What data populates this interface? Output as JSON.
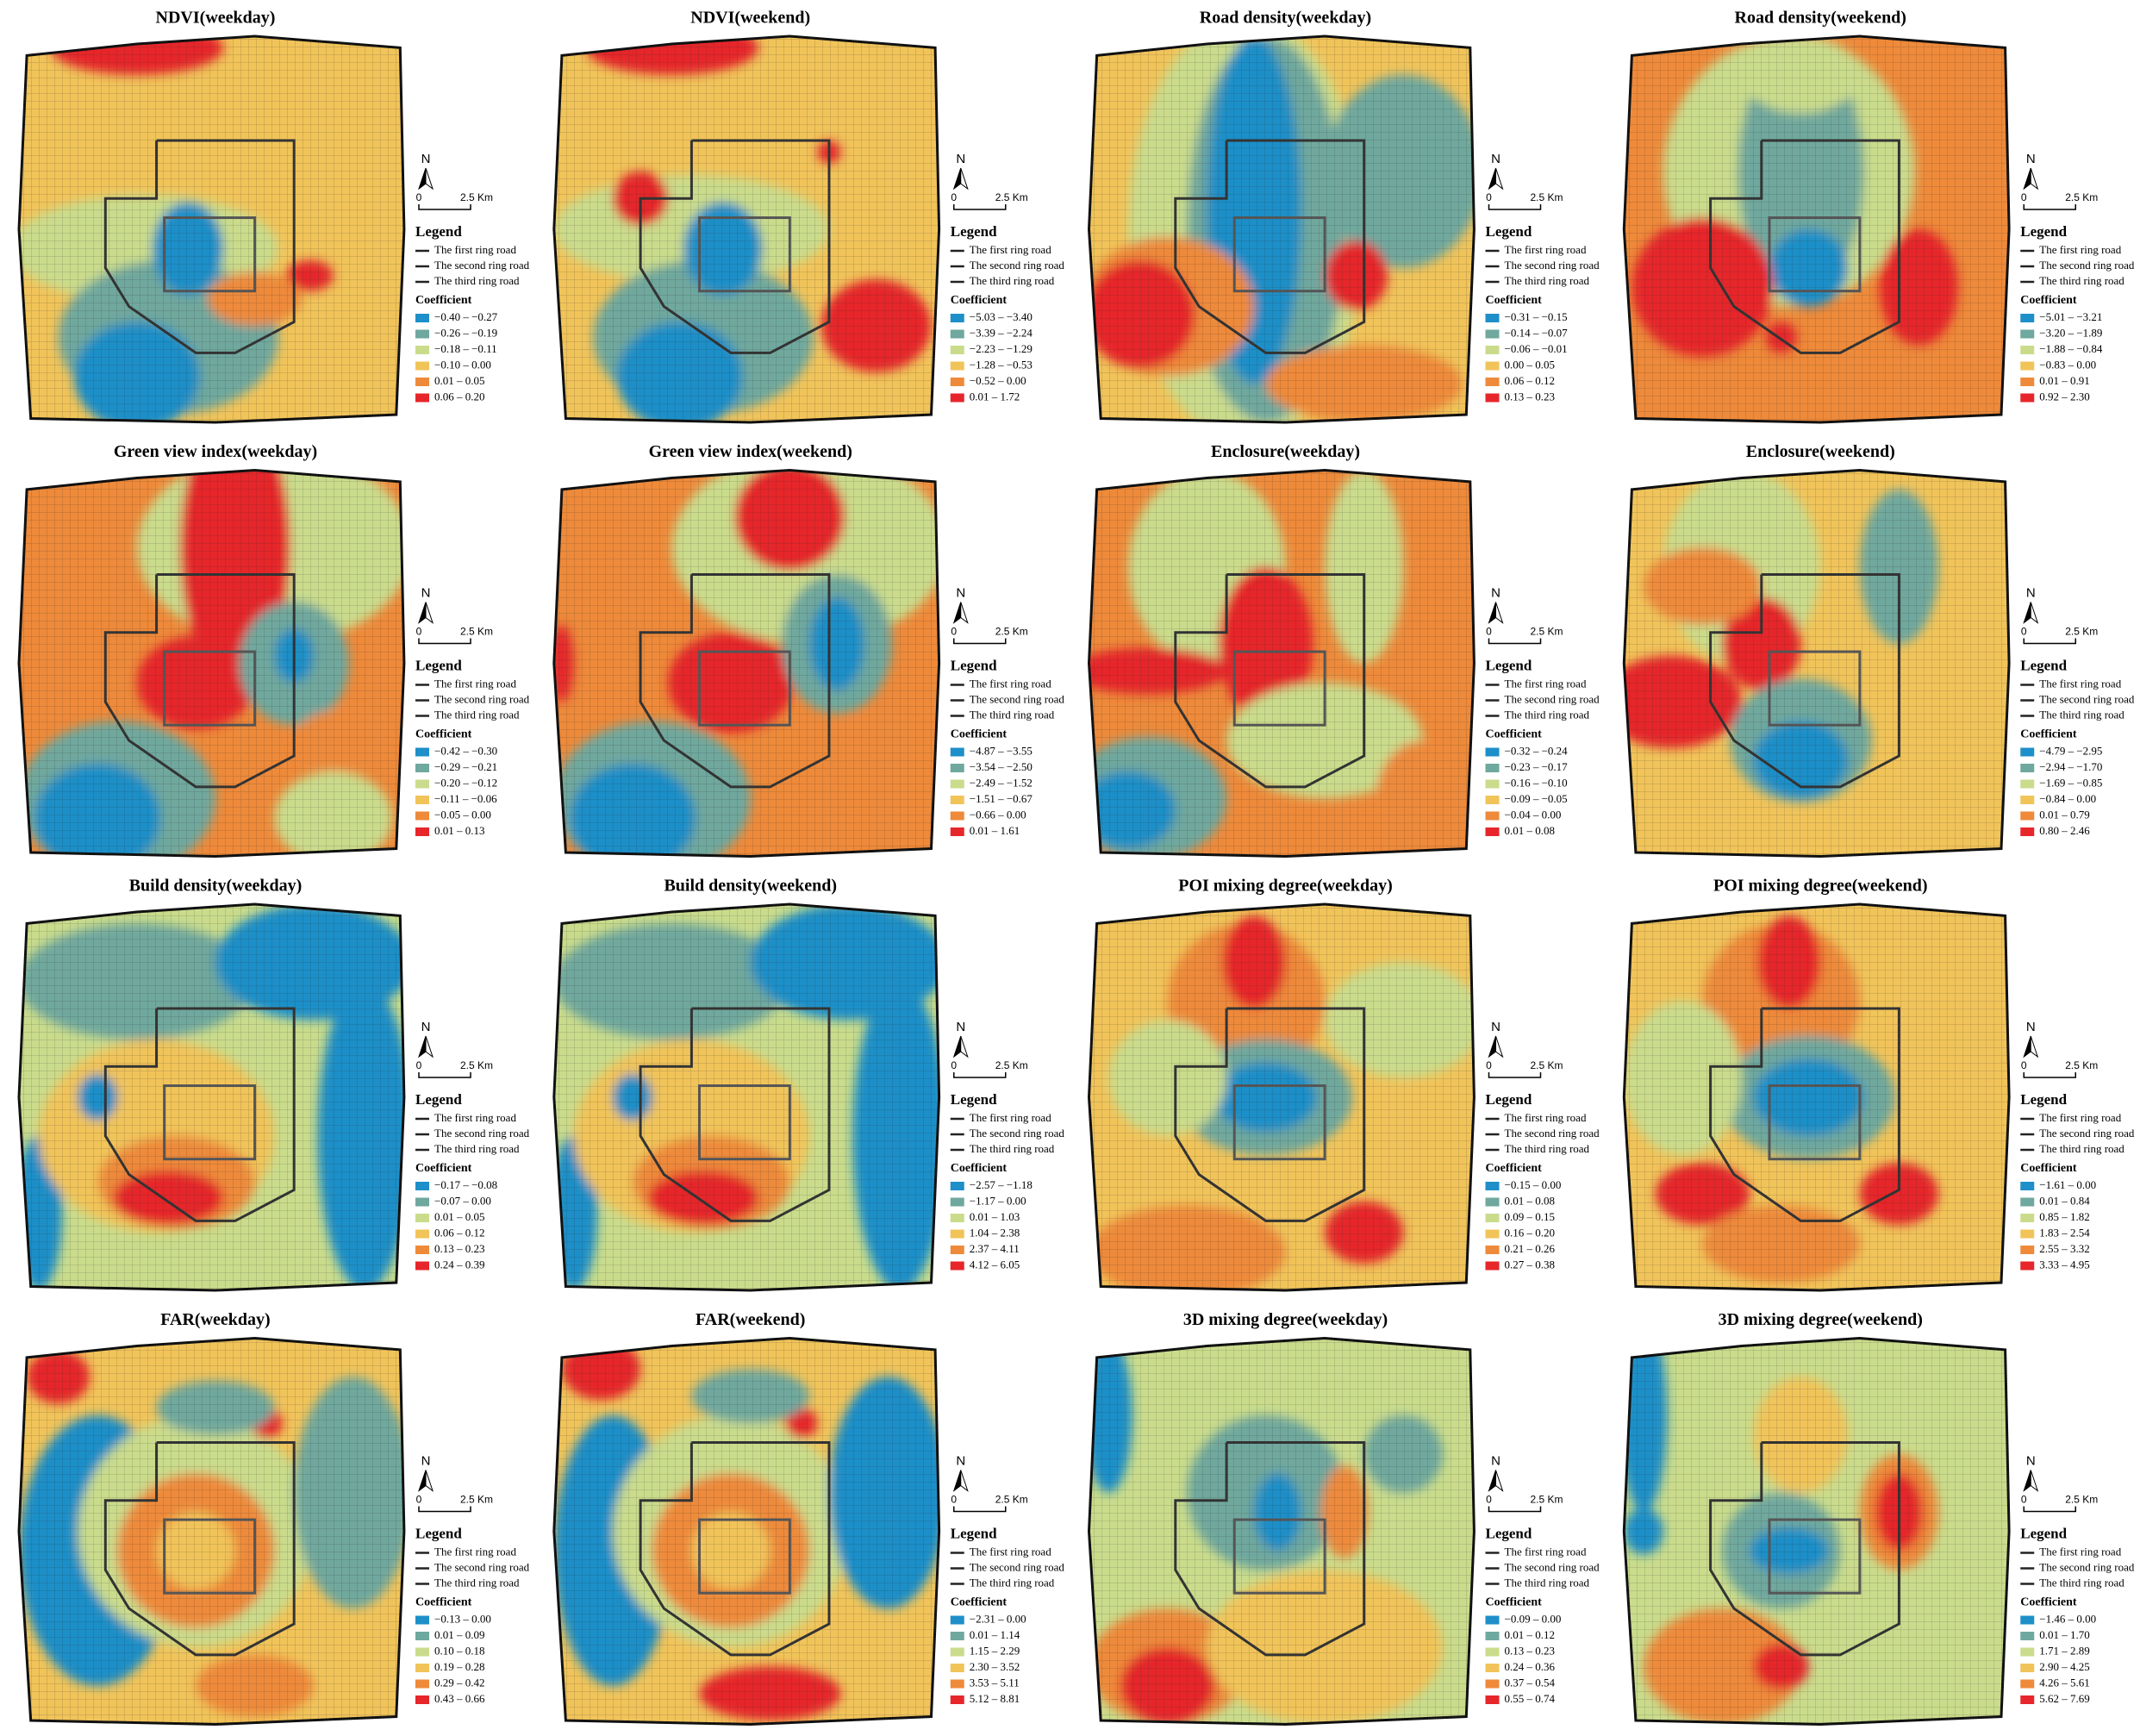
{
  "colors": [
    "#1e8fc8",
    "#6fa89e",
    "#cadc8c",
    "#f1c45a",
    "#ee8a3a",
    "#e6262a"
  ],
  "legend": {
    "north": "N",
    "scale_zero": "0",
    "scale_label": "2.5 Km",
    "title": "Legend",
    "rings": [
      "The first ring road",
      "The second ring road",
      "The third ring road"
    ],
    "coef": "Coefficient"
  },
  "panels": [
    {
      "title": "NDVI(weekday)",
      "classes": [
        "−0.40 – −0.27",
        "−0.26 – −0.19",
        "−0.18 – −0.11",
        "−0.10 – 0.00",
        "0.01 – 0.05",
        "0.06 – 0.20"
      ]
    },
    {
      "title": "NDVI(weekend)",
      "classes": [
        "−5.03 – −3.40",
        "−3.39 – −2.24",
        "−2.23 – −1.29",
        "−1.28 – −0.53",
        "−0.52 – 0.00",
        "0.01 – 1.72"
      ]
    },
    {
      "title": "Road density(weekday)",
      "classes": [
        "−0.31 – −0.15",
        "−0.14 – −0.07",
        "−0.06 – −0.01",
        "0.00 – 0.05",
        "0.06 – 0.12",
        "0.13 – 0.23"
      ]
    },
    {
      "title": "Road density(weekend)",
      "classes": [
        "−5.01 – −3.21",
        "−3.20 – −1.89",
        "−1.88 – −0.84",
        "−0.83 – 0.00",
        "0.01 – 0.91",
        "0.92 – 2.30"
      ]
    },
    {
      "title": "Green view index(weekday)",
      "classes": [
        "−0.42 – −0.30",
        "−0.29 – −0.21",
        "−0.20 – −0.12",
        "−0.11 – −0.06",
        "−0.05 – 0.00",
        "0.01 – 0.13"
      ]
    },
    {
      "title": "Green view index(weekend)",
      "classes": [
        "−4.87 – −3.55",
        "−3.54 – −2.50",
        "−2.49 – −1.52",
        "−1.51 – −0.67",
        "−0.66 – 0.00",
        "0.01 – 1.61"
      ]
    },
    {
      "title": "Enclosure(weekday)",
      "classes": [
        "−0.32 – −0.24",
        "−0.23 – −0.17",
        "−0.16 – −0.10",
        "−0.09 – −0.05",
        "−0.04 – 0.00",
        "0.01 – 0.08"
      ]
    },
    {
      "title": "Enclosure(weekend)",
      "classes": [
        "−4.79 – −2.95",
        "−2.94 – −1.70",
        "−1.69 – −0.85",
        "−0.84 – 0.00",
        "0.01 – 0.79",
        "0.80 – 2.46"
      ]
    },
    {
      "title": "Build density(weekday)",
      "classes": [
        "−0.17 – −0.08",
        "−0.07 – 0.00",
        "0.01 – 0.05",
        "0.06 – 0.12",
        "0.13 – 0.23",
        "0.24 – 0.39"
      ]
    },
    {
      "title": "Build density(weekend)",
      "classes": [
        "−2.57 – −1.18",
        "−1.17 – 0.00",
        "0.01 – 1.03",
        "1.04 – 2.38",
        "2.37 – 4.11",
        "4.12 – 6.05"
      ]
    },
    {
      "title": "POI mixing degree(weekday)",
      "classes": [
        "−0.15 – 0.00",
        "0.01 – 0.08",
        "0.09 – 0.15",
        "0.16 – 0.20",
        "0.21 – 0.26",
        "0.27 – 0.38"
      ]
    },
    {
      "title": "POI mixing degree(weekend)",
      "classes": [
        "−1.61 – 0.00",
        "0.01 – 0.84",
        "0.85 – 1.82",
        "1.83 – 2.54",
        "2.55 – 3.32",
        "3.33 – 4.95"
      ]
    },
    {
      "title": "FAR(weekday)",
      "classes": [
        "−0.13 – 0.00",
        "0.01 – 0.09",
        "0.10 – 0.18",
        "0.19 – 0.28",
        "0.29 – 0.42",
        "0.43 – 0.66"
      ]
    },
    {
      "title": "FAR(weekend)",
      "classes": [
        "−2.31 – 0.00",
        "0.01 – 1.14",
        "1.15 – 2.29",
        "2.30 – 3.52",
        "3.53 – 5.11",
        "5.12 – 8.81"
      ]
    },
    {
      "title": "3D mixing degree(weekday)",
      "classes": [
        "−0.09 – 0.00",
        "0.01 – 0.12",
        "0.13 – 0.23",
        "0.24 – 0.36",
        "0.37 – 0.54",
        "0.55 – 0.74"
      ]
    },
    {
      "title": "3D mixing degree(weekend)",
      "classes": [
        "−1.46 – 0.00",
        "0.01 – 1.70",
        "1.71 – 2.89",
        "2.90 – 4.25",
        "4.26 – 5.61",
        "5.62 – 7.69"
      ]
    }
  ]
}
